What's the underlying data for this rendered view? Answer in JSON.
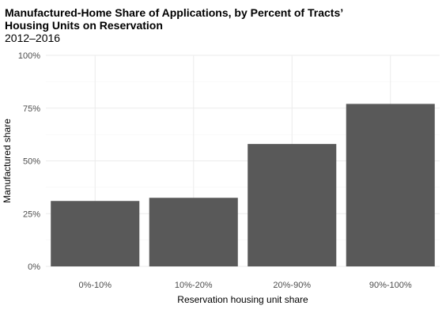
{
  "title_lines": [
    "Manufactured-Home Share of Applications, by Percent of Tracts’",
    "Housing Units on Reservation"
  ],
  "subtitle": "2012–2016",
  "chart_data": {
    "type": "bar",
    "categories": [
      "0%-10%",
      "10%-20%",
      "20%-90%",
      "90%-100%"
    ],
    "values": [
      31,
      32.5,
      58,
      77
    ],
    "xlabel": "Reservation housing unit share",
    "ylabel": "Manufactured share",
    "ylim": [
      0,
      100
    ],
    "y_ticks": [
      0,
      25,
      50,
      75,
      100
    ],
    "y_tick_labels": [
      "0%",
      "25%",
      "50%",
      "75%",
      "100%"
    ],
    "grid": true,
    "bar_color": "#595959",
    "grid_color": "#ebebeb"
  }
}
